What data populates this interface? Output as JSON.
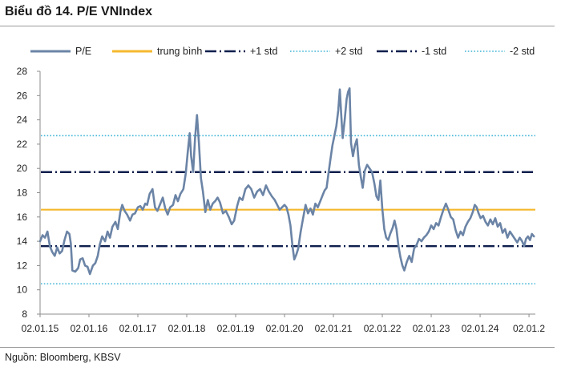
{
  "title": "Biểu đồ 14. P/E VNIndex",
  "source": "Nguồn: Bloomberg, KBSV",
  "chart_data": {
    "type": "line",
    "yticks": [
      8,
      10,
      12,
      14,
      16,
      18,
      20,
      22,
      24,
      26,
      28
    ],
    "ylim": [
      8,
      28
    ],
    "xlim": [
      2015.0,
      2025.13
    ],
    "xticks": [
      {
        "x": 2015,
        "label": "02.01.15"
      },
      {
        "x": 2016,
        "label": "02.01.16"
      },
      {
        "x": 2017,
        "label": "02.01.17"
      },
      {
        "x": 2018,
        "label": "02.01.18"
      },
      {
        "x": 2019,
        "label": "02.01.19"
      },
      {
        "x": 2020,
        "label": "02.01.20"
      },
      {
        "x": 2021,
        "label": "02.01.21"
      },
      {
        "x": 2022,
        "label": "02.01.22"
      },
      {
        "x": 2023,
        "label": "02.01.23"
      },
      {
        "x": 2024,
        "label": "02.01.24"
      },
      {
        "x": 2025,
        "label": "02.01.2"
      }
    ],
    "legend_position": "top",
    "legend": [
      {
        "name": "P/E",
        "color": "#6b84a6",
        "style": "solid"
      },
      {
        "name": "trung bình",
        "color": "#f5b82e",
        "style": "solid"
      },
      {
        "name": "+1 std",
        "color": "#0e1f4d",
        "style": "dashdot"
      },
      {
        "name": "+2 std",
        "color": "#3fb4d8",
        "style": "dotted"
      },
      {
        "name": "-1 std",
        "color": "#0e1f4d",
        "style": "dashdot"
      },
      {
        "name": "-2 std",
        "color": "#3fb4d8",
        "style": "dotted"
      }
    ],
    "reference_lines": [
      {
        "name": "trung bình",
        "value": 16.6
      },
      {
        "name": "+1 std",
        "value": 19.7
      },
      {
        "name": "+2 std",
        "value": 22.7
      },
      {
        "name": "-1 std",
        "value": 13.6
      },
      {
        "name": "-2 std",
        "value": 10.5
      }
    ],
    "series": [
      {
        "name": "P/E",
        "points": [
          [
            2015.0,
            14.0
          ],
          [
            2015.05,
            14.5
          ],
          [
            2015.1,
            14.3
          ],
          [
            2015.15,
            14.8
          ],
          [
            2015.2,
            13.6
          ],
          [
            2015.25,
            13.1
          ],
          [
            2015.3,
            12.8
          ],
          [
            2015.35,
            13.5
          ],
          [
            2015.4,
            13.0
          ],
          [
            2015.45,
            13.2
          ],
          [
            2015.5,
            14.1
          ],
          [
            2015.55,
            14.8
          ],
          [
            2015.6,
            14.6
          ],
          [
            2015.63,
            13.8
          ],
          [
            2015.66,
            11.6
          ],
          [
            2015.72,
            11.5
          ],
          [
            2015.78,
            11.8
          ],
          [
            2015.82,
            12.5
          ],
          [
            2015.87,
            12.6
          ],
          [
            2015.92,
            12.0
          ],
          [
            2015.97,
            11.9
          ],
          [
            2016.02,
            11.3
          ],
          [
            2016.08,
            12.0
          ],
          [
            2016.13,
            12.2
          ],
          [
            2016.18,
            12.8
          ],
          [
            2016.22,
            13.7
          ],
          [
            2016.27,
            14.4
          ],
          [
            2016.33,
            14.0
          ],
          [
            2016.38,
            14.8
          ],
          [
            2016.43,
            14.3
          ],
          [
            2016.48,
            15.2
          ],
          [
            2016.54,
            15.6
          ],
          [
            2016.59,
            15.0
          ],
          [
            2016.64,
            16.4
          ],
          [
            2016.68,
            17.0
          ],
          [
            2016.73,
            16.5
          ],
          [
            2016.78,
            16.2
          ],
          [
            2016.84,
            15.7
          ],
          [
            2016.89,
            16.2
          ],
          [
            2016.94,
            16.3
          ],
          [
            2017.0,
            16.8
          ],
          [
            2017.05,
            16.9
          ],
          [
            2017.1,
            16.6
          ],
          [
            2017.15,
            17.1
          ],
          [
            2017.19,
            17.0
          ],
          [
            2017.24,
            17.9
          ],
          [
            2017.3,
            18.3
          ],
          [
            2017.35,
            16.8
          ],
          [
            2017.4,
            16.5
          ],
          [
            2017.46,
            17.1
          ],
          [
            2017.51,
            17.6
          ],
          [
            2017.56,
            16.7
          ],
          [
            2017.61,
            16.2
          ],
          [
            2017.66,
            16.8
          ],
          [
            2017.72,
            17.0
          ],
          [
            2017.77,
            17.8
          ],
          [
            2017.82,
            17.3
          ],
          [
            2017.87,
            17.9
          ],
          [
            2017.93,
            18.3
          ],
          [
            2017.98,
            19.6
          ],
          [
            2018.02,
            21.3
          ],
          [
            2018.06,
            22.9
          ],
          [
            2018.09,
            21.0
          ],
          [
            2018.13,
            19.7
          ],
          [
            2018.17,
            22.5
          ],
          [
            2018.21,
            24.4
          ],
          [
            2018.25,
            22.0
          ],
          [
            2018.29,
            19.2
          ],
          [
            2018.33,
            18.1
          ],
          [
            2018.38,
            16.4
          ],
          [
            2018.43,
            17.4
          ],
          [
            2018.48,
            16.6
          ],
          [
            2018.53,
            17.1
          ],
          [
            2018.58,
            17.3
          ],
          [
            2018.63,
            17.6
          ],
          [
            2018.68,
            17.2
          ],
          [
            2018.74,
            16.3
          ],
          [
            2018.8,
            16.5
          ],
          [
            2018.86,
            16.0
          ],
          [
            2018.92,
            15.4
          ],
          [
            2018.97,
            15.7
          ],
          [
            2019.03,
            16.9
          ],
          [
            2019.08,
            17.6
          ],
          [
            2019.14,
            17.4
          ],
          [
            2019.2,
            18.3
          ],
          [
            2019.26,
            18.6
          ],
          [
            2019.32,
            18.3
          ],
          [
            2019.38,
            17.6
          ],
          [
            2019.44,
            18.1
          ],
          [
            2019.5,
            18.3
          ],
          [
            2019.56,
            17.8
          ],
          [
            2019.62,
            18.6
          ],
          [
            2019.68,
            18.1
          ],
          [
            2019.74,
            17.7
          ],
          [
            2019.8,
            17.4
          ],
          [
            2019.85,
            17.0
          ],
          [
            2019.9,
            16.6
          ],
          [
            2019.95,
            16.8
          ],
          [
            2020.0,
            17.0
          ],
          [
            2020.04,
            16.8
          ],
          [
            2020.08,
            16.2
          ],
          [
            2020.12,
            15.3
          ],
          [
            2020.16,
            13.7
          ],
          [
            2020.2,
            12.5
          ],
          [
            2020.24,
            12.9
          ],
          [
            2020.28,
            13.4
          ],
          [
            2020.33,
            14.8
          ],
          [
            2020.38,
            15.9
          ],
          [
            2020.43,
            17.0
          ],
          [
            2020.48,
            16.3
          ],
          [
            2020.53,
            16.7
          ],
          [
            2020.58,
            16.2
          ],
          [
            2020.63,
            17.1
          ],
          [
            2020.68,
            16.8
          ],
          [
            2020.73,
            17.3
          ],
          [
            2020.78,
            17.8
          ],
          [
            2020.82,
            18.2
          ],
          [
            2020.86,
            18.4
          ],
          [
            2020.9,
            19.6
          ],
          [
            2020.94,
            20.8
          ],
          [
            2020.98,
            21.9
          ],
          [
            2021.02,
            22.7
          ],
          [
            2021.06,
            23.5
          ],
          [
            2021.1,
            24.8
          ],
          [
            2021.13,
            26.5
          ],
          [
            2021.16,
            24.4
          ],
          [
            2021.19,
            22.5
          ],
          [
            2021.23,
            24.0
          ],
          [
            2021.27,
            25.7
          ],
          [
            2021.3,
            26.3
          ],
          [
            2021.33,
            26.6
          ],
          [
            2021.36,
            22.1
          ],
          [
            2021.4,
            21.0
          ],
          [
            2021.44,
            21.9
          ],
          [
            2021.48,
            22.4
          ],
          [
            2021.52,
            20.3
          ],
          [
            2021.56,
            19.3
          ],
          [
            2021.6,
            18.4
          ],
          [
            2021.64,
            19.8
          ],
          [
            2021.69,
            20.3
          ],
          [
            2021.74,
            20.0
          ],
          [
            2021.79,
            19.7
          ],
          [
            2021.84,
            18.7
          ],
          [
            2021.88,
            17.7
          ],
          [
            2021.92,
            17.4
          ],
          [
            2021.96,
            19.0
          ],
          [
            2022.0,
            16.7
          ],
          [
            2022.04,
            15.0
          ],
          [
            2022.08,
            14.3
          ],
          [
            2022.12,
            14.1
          ],
          [
            2022.16,
            14.6
          ],
          [
            2022.21,
            15.1
          ],
          [
            2022.25,
            15.7
          ],
          [
            2022.29,
            15.0
          ],
          [
            2022.33,
            13.6
          ],
          [
            2022.37,
            12.7
          ],
          [
            2022.41,
            12.0
          ],
          [
            2022.45,
            11.6
          ],
          [
            2022.5,
            12.3
          ],
          [
            2022.55,
            12.8
          ],
          [
            2022.6,
            12.3
          ],
          [
            2022.65,
            13.4
          ],
          [
            2022.7,
            13.7
          ],
          [
            2022.75,
            14.2
          ],
          [
            2022.8,
            14.0
          ],
          [
            2022.85,
            14.3
          ],
          [
            2022.9,
            14.5
          ],
          [
            2022.95,
            14.8
          ],
          [
            2023.0,
            15.3
          ],
          [
            2023.05,
            15.0
          ],
          [
            2023.1,
            15.5
          ],
          [
            2023.15,
            15.3
          ],
          [
            2023.2,
            16.0
          ],
          [
            2023.25,
            16.6
          ],
          [
            2023.3,
            17.1
          ],
          [
            2023.35,
            16.6
          ],
          [
            2023.4,
            16.0
          ],
          [
            2023.45,
            15.8
          ],
          [
            2023.5,
            14.9
          ],
          [
            2023.55,
            14.3
          ],
          [
            2023.6,
            14.8
          ],
          [
            2023.65,
            14.5
          ],
          [
            2023.7,
            15.2
          ],
          [
            2023.75,
            15.6
          ],
          [
            2023.8,
            15.9
          ],
          [
            2023.85,
            16.4
          ],
          [
            2023.89,
            17.0
          ],
          [
            2023.93,
            16.8
          ],
          [
            2023.97,
            16.3
          ],
          [
            2024.01,
            15.9
          ],
          [
            2024.06,
            16.1
          ],
          [
            2024.11,
            15.6
          ],
          [
            2024.16,
            15.3
          ],
          [
            2024.21,
            15.8
          ],
          [
            2024.26,
            15.4
          ],
          [
            2024.31,
            15.9
          ],
          [
            2024.36,
            15.2
          ],
          [
            2024.41,
            15.5
          ],
          [
            2024.46,
            14.7
          ],
          [
            2024.51,
            15.0
          ],
          [
            2024.56,
            14.3
          ],
          [
            2024.61,
            14.8
          ],
          [
            2024.66,
            14.5
          ],
          [
            2024.71,
            14.2
          ],
          [
            2024.76,
            13.9
          ],
          [
            2024.81,
            14.3
          ],
          [
            2024.86,
            14.0
          ],
          [
            2024.9,
            13.6
          ],
          [
            2024.94,
            14.2
          ],
          [
            2024.98,
            14.4
          ],
          [
            2025.02,
            14.1
          ],
          [
            2025.06,
            14.6
          ],
          [
            2025.1,
            14.4
          ]
        ]
      }
    ]
  }
}
